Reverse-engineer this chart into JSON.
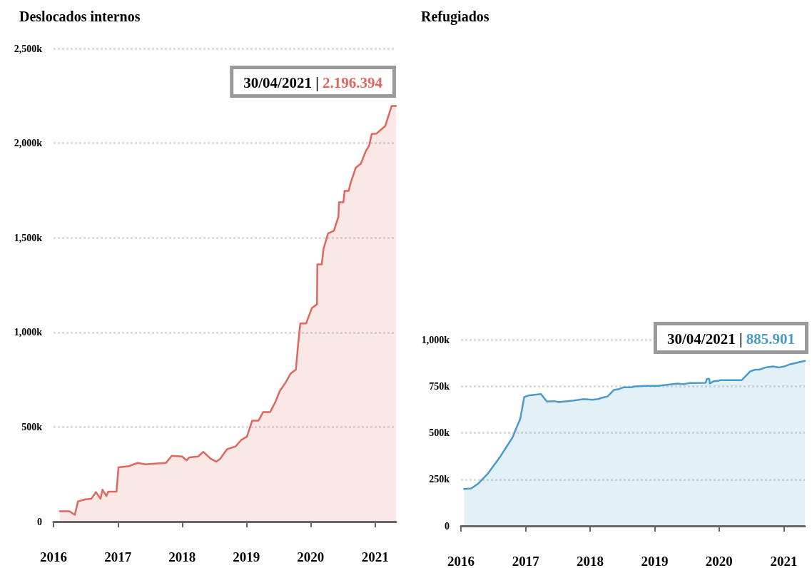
{
  "chart_data": [
    {
      "type": "area",
      "title": "Deslocados internos",
      "x": [
        "2016-02-06",
        "2016-04-01",
        "2016-05-01",
        "2016-05-19",
        "2016-07-01",
        "2016-08-03",
        "2016-08-29",
        "2016-09-24",
        "2016-10-05",
        "2016-10-27",
        "2016-11-07",
        "2016-12-24",
        "2017-01-04",
        "2017-03-04",
        "2017-04-23",
        "2017-06-07",
        "2017-08-11",
        "2017-10-01",
        "2017-11-03",
        "2018-01-01",
        "2018-01-26",
        "2018-02-10",
        "2018-04-01",
        "2018-05-01",
        "2018-06-14",
        "2018-07-13",
        "2018-08-04",
        "2018-09-13",
        "2018-10-31",
        "2018-12-02",
        "2019-01-04",
        "2019-02-03",
        "2019-03-11",
        "2019-04-06",
        "2019-05-16",
        "2019-06-14",
        "2019-07-09",
        "2019-08-11",
        "2019-09-09",
        "2019-10-09",
        "2019-10-23",
        "2019-11-03",
        "2019-12-06",
        "2020-01-08",
        "2020-02-06",
        "2020-02-08",
        "2020-03-04",
        "2020-03-14",
        "2020-04-09",
        "2020-05-12",
        "2020-06-07",
        "2020-06-10",
        "2020-07-05",
        "2020-07-12",
        "2020-08-04",
        "2020-08-15",
        "2020-09-13",
        "2020-10-12",
        "2020-11-10",
        "2020-11-28",
        "2020-12-13",
        "2021-01-08",
        "2021-02-28",
        "2021-04-05",
        "2021-04-30"
      ],
      "series": [
        {
          "color": "#e0675e",
          "values": [
            55000,
            55000,
            36000,
            107000,
            118000,
            121000,
            156000,
            121000,
            169000,
            135000,
            158000,
            158000,
            287000,
            293000,
            310000,
            303000,
            307000,
            310000,
            348000,
            344000,
            324000,
            339000,
            344000,
            369000,
            331000,
            317000,
            331000,
            383000,
            397000,
            431000,
            449000,
            534000,
            534000,
            579000,
            579000,
            631000,
            689000,
            734000,
            782000,
            803000,
            948000,
            1047000,
            1047000,
            1129000,
            1148000,
            1359000,
            1359000,
            1441000,
            1523000,
            1537000,
            1612000,
            1687000,
            1687000,
            1748000,
            1748000,
            1789000,
            1870000,
            1891000,
            1959000,
            1986000,
            2048000,
            2050000,
            2091000,
            2196000,
            2196394
          ]
        }
      ],
      "xlim": [
        "2016-01-01",
        "2021-04-30"
      ],
      "xticks": [
        {
          "value": "2016-01-01",
          "label": "2016"
        },
        {
          "value": "2017-01-01",
          "label": "2017"
        },
        {
          "value": "2018-01-01",
          "label": "2018"
        },
        {
          "value": "2019-01-01",
          "label": "2019"
        },
        {
          "value": "2020-01-01",
          "label": "2020"
        },
        {
          "value": "2021-01-01",
          "label": "2021"
        }
      ],
      "ylim": [
        0,
        2500000
      ],
      "yticks": [
        0,
        {
          "value": 500000,
          "label": "500k"
        },
        {
          "value": 1000000,
          "label": "1,000k"
        },
        {
          "value": 1500000,
          "label": "1,500k"
        },
        {
          "value": 2000000,
          "label": "2,000k"
        },
        {
          "value": 2500000,
          "label": "2,500k"
        }
      ],
      "grid": "y",
      "annotations": [
        "30/04/2021 | 2.196.394"
      ]
    },
    {
      "type": "area",
      "title": "Refugiados",
      "x": [
        "2016-01-19",
        "2016-02-28",
        "2016-04-09",
        "2016-05-30",
        "2016-08-11",
        "2016-10-19",
        "2016-12-02",
        "2016-12-24",
        "2017-01-15",
        "2017-03-29",
        "2017-05-01",
        "2017-06-10",
        "2017-07-09",
        "2017-10-01",
        "2017-11-28",
        "2018-01-12",
        "2018-02-17",
        "2018-03-11",
        "2018-04-09",
        "2018-05-16",
        "2018-06-14",
        "2018-07-09",
        "2018-08-22",
        "2018-09-13",
        "2018-11-10",
        "2019-01-19",
        "2019-03-04",
        "2019-05-12",
        "2019-06-10",
        "2019-07-20",
        "2019-10-16",
        "2019-10-23",
        "2019-11-06",
        "2019-11-09",
        "2019-12-02",
        "2020-01-01",
        "2020-01-08",
        "2020-05-08",
        "2020-06-25",
        "2020-07-24",
        "2020-08-15",
        "2020-09-20",
        "2020-10-31",
        "2020-12-06",
        "2021-01-03",
        "2021-02-06",
        "2021-04-30"
      ],
      "series": [
        {
          "color": "#4a9acb",
          "values": [
            198000,
            201000,
            228000,
            278000,
            373000,
            475000,
            577000,
            692000,
            700000,
            708000,
            668000,
            670000,
            665000,
            673000,
            681000,
            677000,
            681000,
            689000,
            695000,
            730000,
            735000,
            744000,
            744000,
            749000,
            752000,
            752000,
            757000,
            764000,
            761000,
            767000,
            768000,
            788000,
            790000,
            765000,
            777000,
            780000,
            783000,
            783000,
            830000,
            839000,
            839000,
            851000,
            856000,
            851000,
            856000,
            868000,
            885901
          ]
        }
      ],
      "xlim": [
        "2016-01-01",
        "2021-04-30"
      ],
      "xticks": [
        {
          "value": "2016-01-01",
          "label": "2016"
        },
        {
          "value": "2017-01-01",
          "label": "2017"
        },
        {
          "value": "2018-01-01",
          "label": "2018"
        },
        {
          "value": "2019-01-01",
          "label": "2019"
        },
        {
          "value": "2020-01-01",
          "label": "2020"
        },
        {
          "value": "2021-01-01",
          "label": "2021"
        }
      ],
      "ylim": [
        0,
        1000000
      ],
      "yticks": [
        0,
        {
          "value": 250000,
          "label": "250k"
        },
        {
          "value": 500000,
          "label": "500k"
        },
        {
          "value": 750000,
          "label": "750k"
        },
        {
          "value": 1000000,
          "label": "1,000k"
        }
      ],
      "grid": "y",
      "annotations": [
        "30/04/2021 | 885.901"
      ]
    }
  ]
}
